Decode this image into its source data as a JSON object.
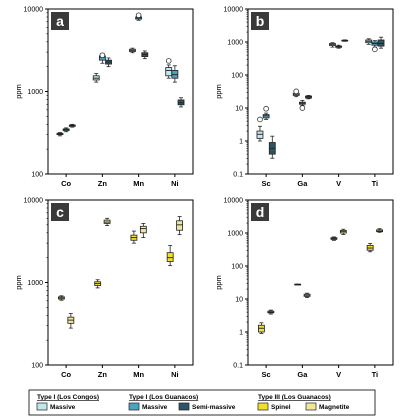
{
  "colors": {
    "type1_congos_massive": "#bfe7ec",
    "type1_guanacos_massive": "#4aa3c2",
    "type1_guanacos_semimassive": "#2d5566",
    "type3_spinel": "#f3de2a",
    "type3_magnetite": "#f1e79a",
    "panel_label_bg": "#3a3a3a"
  },
  "legend": {
    "groups": [
      {
        "title": "Type I (Los Congos)",
        "items": [
          {
            "label": "Massive",
            "color_key": "type1_congos_massive"
          }
        ]
      },
      {
        "title": "Type I (Los Guanacos)",
        "items": [
          {
            "label": "Massive",
            "color_key": "type1_guanacos_massive"
          },
          {
            "label": "Semi-massive",
            "color_key": "type1_guanacos_semimassive"
          }
        ]
      },
      {
        "title": "Type III (Los Guanacos)",
        "items": [
          {
            "label": "Spinel",
            "color_key": "type3_spinel"
          },
          {
            "label": "Magnetite",
            "color_key": "type3_magnetite"
          }
        ]
      }
    ]
  },
  "chart_data": [
    {
      "id": "a",
      "type": "box",
      "yscale": "log",
      "ylim": [
        100,
        10000
      ],
      "ylabel": "ppm",
      "yticks": [
        100,
        1000,
        10000
      ],
      "categories": [
        "Co",
        "Zn",
        "Mn",
        "Ni"
      ],
      "boxes": [
        {
          "cat": 0,
          "off": -0.17,
          "color_key": "type1_congos_massive",
          "min": 290,
          "q1": 300,
          "med": 305,
          "q3": 312,
          "max": 318
        },
        {
          "cat": 0,
          "off": 0.0,
          "color_key": "type1_guanacos_massive",
          "min": 325,
          "q1": 335,
          "med": 345,
          "q3": 352,
          "max": 362
        },
        {
          "cat": 0,
          "off": 0.17,
          "color_key": "type1_guanacos_semimassive",
          "min": 370,
          "q1": 378,
          "med": 385,
          "q3": 392,
          "max": 400
        },
        {
          "cat": 1,
          "off": -0.17,
          "color_key": "type1_congos_massive",
          "min": 1300,
          "q1": 1380,
          "med": 1450,
          "q3": 1550,
          "max": 1650
        },
        {
          "cat": 1,
          "off": 0.0,
          "color_key": "type1_guanacos_massive",
          "min": 2200,
          "q1": 2400,
          "med": 2600,
          "q3": 2700,
          "max": 2900,
          "outliers": [
            2750
          ]
        },
        {
          "cat": 1,
          "off": 0.17,
          "color_key": "type1_guanacos_semimassive",
          "min": 2000,
          "q1": 2150,
          "med": 2280,
          "q3": 2400,
          "max": 2550
        },
        {
          "cat": 2,
          "off": -0.17,
          "color_key": "type1_congos_massive",
          "min": 2950,
          "q1": 3050,
          "med": 3150,
          "q3": 3250,
          "max": 3350
        },
        {
          "cat": 2,
          "off": 0.0,
          "color_key": "type1_guanacos_massive",
          "min": 7300,
          "q1": 7550,
          "med": 7800,
          "q3": 8000,
          "max": 8200,
          "outliers": [
            8400
          ]
        },
        {
          "cat": 2,
          "off": 0.17,
          "color_key": "type1_guanacos_semimassive",
          "min": 2500,
          "q1": 2650,
          "med": 2800,
          "q3": 2950,
          "max": 3100
        },
        {
          "cat": 3,
          "off": -0.17,
          "color_key": "type1_congos_massive",
          "min": 1450,
          "q1": 1550,
          "med": 1800,
          "q3": 1950,
          "max": 2100,
          "outliers": [
            2350
          ]
        },
        {
          "cat": 3,
          "off": 0.0,
          "color_key": "type1_guanacos_massive",
          "min": 1300,
          "q1": 1450,
          "med": 1600,
          "q3": 1800,
          "max": 2050
        },
        {
          "cat": 3,
          "off": 0.17,
          "color_key": "type1_guanacos_semimassive",
          "min": 650,
          "q1": 690,
          "med": 730,
          "q3": 790,
          "max": 840
        }
      ]
    },
    {
      "id": "b",
      "type": "box",
      "yscale": "log",
      "ylim": [
        0.1,
        10000
      ],
      "ylabel": "ppm",
      "yticks": [
        0.1,
        1,
        10,
        100,
        1000,
        10000
      ],
      "categories": [
        "Sc",
        "Ga",
        "V",
        "Ti"
      ],
      "boxes": [
        {
          "cat": 0,
          "off": -0.17,
          "color_key": "type1_congos_massive",
          "min": 1.0,
          "q1": 1.2,
          "med": 1.6,
          "q3": 2.0,
          "max": 2.8,
          "outliers": [
            4.5
          ]
        },
        {
          "cat": 0,
          "off": 0.0,
          "color_key": "type1_guanacos_massive",
          "min": 4.5,
          "q1": 5.0,
          "med": 5.8,
          "q3": 6.3,
          "max": 7.0,
          "outliers": [
            9.5
          ]
        },
        {
          "cat": 0,
          "off": 0.17,
          "color_key": "type1_guanacos_semimassive",
          "min": 0.3,
          "q1": 0.4,
          "med": 0.6,
          "q3": 0.9,
          "max": 1.4
        },
        {
          "cat": 1,
          "off": -0.17,
          "color_key": "type1_congos_massive",
          "min": 22,
          "q1": 24,
          "med": 26,
          "q3": 28,
          "max": 30,
          "outliers": [
            32
          ]
        },
        {
          "cat": 1,
          "off": 0.0,
          "color_key": "type1_guanacos_massive",
          "min": 12,
          "q1": 13,
          "med": 14,
          "q3": 15,
          "max": 17,
          "outliers": [
            10
          ]
        },
        {
          "cat": 1,
          "off": 0.17,
          "color_key": "type1_guanacos_semimassive",
          "min": 19,
          "q1": 20,
          "med": 22,
          "q3": 23,
          "max": 24
        },
        {
          "cat": 2,
          "off": -0.17,
          "color_key": "type1_congos_massive",
          "min": 700,
          "q1": 780,
          "med": 850,
          "q3": 900,
          "max": 950
        },
        {
          "cat": 2,
          "off": 0.0,
          "color_key": "type1_guanacos_massive",
          "min": 650,
          "q1": 690,
          "med": 720,
          "q3": 750,
          "max": 800
        },
        {
          "cat": 2,
          "off": 0.17,
          "color_key": "type1_guanacos_semimassive",
          "min": 1050,
          "q1": 1080,
          "med": 1100,
          "q3": 1130,
          "max": 1160
        },
        {
          "cat": 3,
          "off": -0.17,
          "color_key": "type1_congos_massive",
          "min": 850,
          "q1": 950,
          "med": 1050,
          "q3": 1150,
          "max": 1250
        },
        {
          "cat": 3,
          "off": 0.0,
          "color_key": "type1_guanacos_massive",
          "min": 700,
          "q1": 800,
          "med": 900,
          "q3": 1000,
          "max": 1100,
          "outliers": [
            600
          ]
        },
        {
          "cat": 3,
          "off": 0.17,
          "color_key": "type1_guanacos_semimassive",
          "min": 650,
          "q1": 750,
          "med": 900,
          "q3": 1150,
          "max": 1400
        }
      ]
    },
    {
      "id": "c",
      "type": "box",
      "yscale": "log",
      "ylim": [
        100,
        10000
      ],
      "ylabel": "ppm",
      "yticks": [
        100,
        1000,
        10000
      ],
      "categories": [
        "Co",
        "Zn",
        "Mn",
        "Ni"
      ],
      "boxes": [
        {
          "cat": 0,
          "off": -0.13,
          "color_key": "type3_spinel",
          "min": 610,
          "q1": 630,
          "med": 650,
          "q3": 670,
          "max": 690
        },
        {
          "cat": 0,
          "off": 0.13,
          "color_key": "type3_magnetite",
          "min": 280,
          "q1": 320,
          "med": 350,
          "q3": 380,
          "max": 420
        },
        {
          "cat": 1,
          "off": 0.13,
          "color_key": "type3_magnetite",
          "min": 4900,
          "q1": 5200,
          "med": 5400,
          "q3": 5700,
          "max": 6000
        },
        {
          "cat": 1,
          "off": -0.13,
          "color_key": "type3_spinel",
          "min": 860,
          "q1": 920,
          "med": 970,
          "q3": 1020,
          "max": 1080
        },
        {
          "cat": 2,
          "off": -0.13,
          "color_key": "type3_spinel",
          "min": 3000,
          "q1": 3250,
          "med": 3500,
          "q3": 3750,
          "max": 4200
        },
        {
          "cat": 2,
          "off": 0.13,
          "color_key": "type3_magnetite",
          "min": 3500,
          "q1": 4000,
          "med": 4500,
          "q3": 4800,
          "max": 5200
        },
        {
          "cat": 3,
          "off": -0.13,
          "color_key": "type3_spinel",
          "min": 1600,
          "q1": 1800,
          "med": 2000,
          "q3": 2300,
          "max": 2800
        },
        {
          "cat": 3,
          "off": 0.13,
          "color_key": "type3_magnetite",
          "min": 3800,
          "q1": 4300,
          "med": 5000,
          "q3": 5600,
          "max": 6300
        }
      ]
    },
    {
      "id": "d",
      "type": "box",
      "yscale": "log",
      "ylim": [
        0.1,
        10000
      ],
      "ylabel": "ppm",
      "yticks": [
        0.1,
        1,
        10,
        100,
        1000,
        10000
      ],
      "categories": [
        "Sc",
        "Ga",
        "V",
        "Ti"
      ],
      "boxes": [
        {
          "cat": 0,
          "off": -0.13,
          "color_key": "type3_spinel",
          "min": 0.9,
          "q1": 1.0,
          "med": 1.3,
          "q3": 1.6,
          "max": 1.9
        },
        {
          "cat": 0,
          "off": 0.13,
          "color_key": "type3_magnetite",
          "min": 3.5,
          "q1": 3.8,
          "med": 4.0,
          "q3": 4.3,
          "max": 4.6
        },
        {
          "cat": 1,
          "off": -0.13,
          "color_key": "type3_spinel",
          "min": 28,
          "q1": 28,
          "med": 28,
          "q3": 28,
          "max": 28
        },
        {
          "cat": 1,
          "off": 0.13,
          "color_key": "type3_magnetite",
          "min": 11,
          "q1": 12,
          "med": 13,
          "q3": 14,
          "max": 15
        },
        {
          "cat": 2,
          "off": -0.13,
          "color_key": "type3_spinel",
          "min": 600,
          "q1": 640,
          "med": 680,
          "q3": 720,
          "max": 760
        },
        {
          "cat": 2,
          "off": 0.13,
          "color_key": "type3_magnetite",
          "min": 900,
          "q1": 1000,
          "med": 1100,
          "q3": 1200,
          "max": 1300
        },
        {
          "cat": 3,
          "off": -0.13,
          "color_key": "type3_spinel",
          "min": 270,
          "q1": 300,
          "med": 350,
          "q3": 420,
          "max": 480
        },
        {
          "cat": 3,
          "off": 0.13,
          "color_key": "type3_magnetite",
          "min": 1050,
          "q1": 1100,
          "med": 1150,
          "q3": 1250,
          "max": 1350
        }
      ]
    }
  ]
}
